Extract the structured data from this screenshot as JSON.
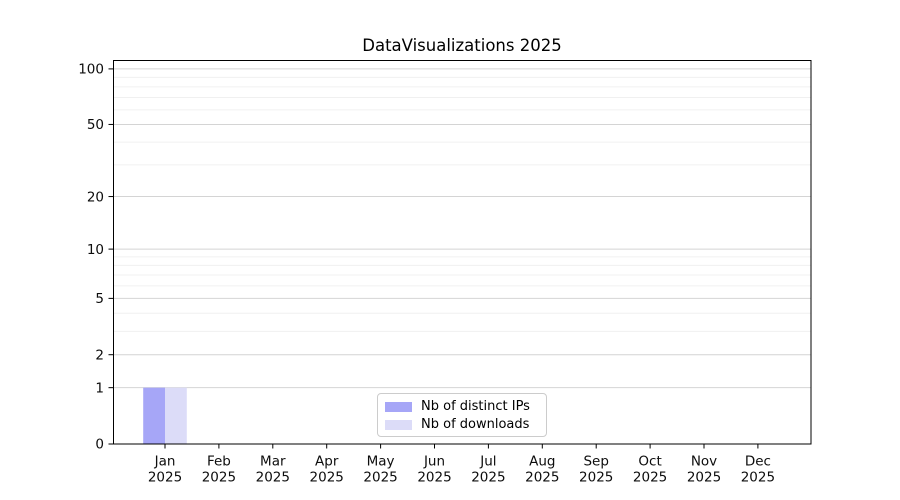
{
  "chart_data": {
    "type": "bar",
    "title": "DataVisualizations 2025",
    "xlabel": "",
    "ylabel": "",
    "categories": [
      "Jan",
      "Feb",
      "Mar",
      "Apr",
      "May",
      "Jun",
      "Jul",
      "Aug",
      "Sep",
      "Oct",
      "Nov",
      "Dec"
    ],
    "category_year": "2025",
    "series": [
      {
        "name": "Nb of distinct IPs",
        "color": "#a6a6f7",
        "values": [
          1,
          0,
          0,
          0,
          0,
          0,
          0,
          0,
          0,
          0,
          0,
          0
        ]
      },
      {
        "name": "Nb of downloads",
        "color": "#dcdcf8",
        "values": [
          1,
          0,
          0,
          0,
          0,
          0,
          0,
          0,
          0,
          0,
          0,
          0
        ]
      }
    ],
    "yscale": "log1p",
    "ylim": [
      0,
      111
    ],
    "yticks_major": [
      0,
      1,
      2,
      5,
      10,
      20,
      50,
      100
    ],
    "yticks_minor": [
      3,
      4,
      6,
      7,
      8,
      9,
      30,
      40,
      60,
      70,
      80,
      90
    ],
    "grid": true,
    "legend_position": "lower center inside",
    "colors": {
      "axis": "#000000",
      "grid_major": "#d4d4d4",
      "grid_minor": "#f0f0f0",
      "text": "#0d0d0d",
      "plot_background": "#ffffff"
    }
  }
}
